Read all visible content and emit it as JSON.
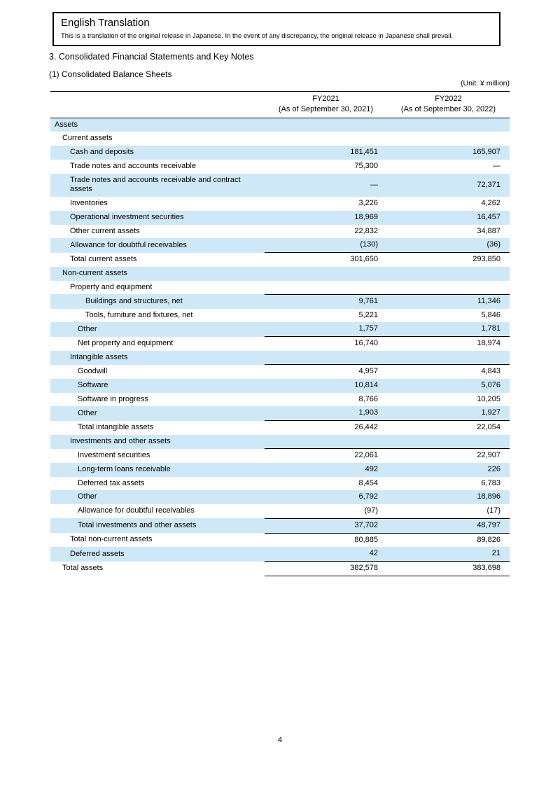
{
  "translation_notice": {
    "title": "English Translation",
    "body": "This is a translation of the original release in Japanese. In the event of any discrepancy, the original release in Japanese shall prevail."
  },
  "headings": {
    "section": "3. Consolidated Financial Statements and Key Notes",
    "subsection": "(1) Consolidated Balance Sheets",
    "unit_note": "(Unit: ¥ million)"
  },
  "balance_sheet": {
    "columns": [
      {
        "line1": "FY2021",
        "line2": "(As of September 30, 2021)"
      },
      {
        "line1": "FY2022",
        "line2": "(As of September 30, 2022)"
      }
    ],
    "rows": [
      {
        "label": "Assets",
        "indent": 0,
        "fy2021": "",
        "fy2022": ""
      },
      {
        "label": "Current assets",
        "indent": 1,
        "fy2021": "",
        "fy2022": ""
      },
      {
        "label": "Cash and deposits",
        "indent": 2,
        "fy2021": "181,451",
        "fy2022": "165,907"
      },
      {
        "label": "Trade notes and accounts receivable",
        "indent": 2,
        "fy2021": "75,300",
        "fy2022": "—"
      },
      {
        "label": "Trade notes and accounts receivable and contract assets",
        "indent": 2,
        "fy2021": "—",
        "fy2022": "72,371"
      },
      {
        "label": "Inventories",
        "indent": 2,
        "fy2021": "3,226",
        "fy2022": "4,262"
      },
      {
        "label": "Operational investment securities",
        "indent": 2,
        "fy2021": "18,969",
        "fy2022": "16,457"
      },
      {
        "label": "Other current assets",
        "indent": 2,
        "fy2021": "22,832",
        "fy2022": "34,887"
      },
      {
        "label": "Allowance for doubtful receivables",
        "indent": 2,
        "fy2021": "(130)",
        "fy2022": "(36)"
      },
      {
        "label": "Total current assets",
        "indent": 2,
        "fy2021": "301,650",
        "fy2022": "293,850",
        "rule_above": true
      },
      {
        "label": "Non-current assets",
        "indent": 1,
        "fy2021": "",
        "fy2022": ""
      },
      {
        "label": "Property and equipment",
        "indent": 2,
        "fy2021": "",
        "fy2022": ""
      },
      {
        "label": "Buildings and structures, net",
        "indent": 4,
        "fy2021": "9,761",
        "fy2022": "11,346",
        "rule_above": true
      },
      {
        "label": "Tools, furniture and fixtures, net",
        "indent": 4,
        "fy2021": "5,221",
        "fy2022": "5,846"
      },
      {
        "label": "Other",
        "indent": 3,
        "fy2021": "1,757",
        "fy2022": "1,781"
      },
      {
        "label": "Net property and equipment",
        "indent": 3,
        "fy2021": "16,740",
        "fy2022": "18,974",
        "rule_above": true
      },
      {
        "label": "Intangible assets",
        "indent": 2,
        "fy2021": "",
        "fy2022": ""
      },
      {
        "label": "Goodwill",
        "indent": 3,
        "fy2021": "4,957",
        "fy2022": "4,843",
        "rule_above": true
      },
      {
        "label": "Software",
        "indent": 3,
        "fy2021": "10,814",
        "fy2022": "5,076"
      },
      {
        "label": "Software in progress",
        "indent": 3,
        "fy2021": "8,766",
        "fy2022": "10,205"
      },
      {
        "label": "Other",
        "indent": 3,
        "fy2021": "1,903",
        "fy2022": "1,927"
      },
      {
        "label": "Total intangible assets",
        "indent": 3,
        "fy2021": "26,442",
        "fy2022": "22,054",
        "rule_above": true
      },
      {
        "label": "Investments and other assets",
        "indent": 2,
        "fy2021": "",
        "fy2022": ""
      },
      {
        "label": "Investment securities",
        "indent": 3,
        "fy2021": "22,061",
        "fy2022": "22,907",
        "rule_above": true
      },
      {
        "label": "Long-term loans receivable",
        "indent": 3,
        "fy2021": "492",
        "fy2022": "226"
      },
      {
        "label": "Deferred tax assets",
        "indent": 3,
        "fy2021": "8,454",
        "fy2022": "6,783"
      },
      {
        "label": "Other",
        "indent": 3,
        "fy2021": "6,792",
        "fy2022": "18,896"
      },
      {
        "label": "Allowance for doubtful receivables",
        "indent": 3,
        "fy2021": "(97)",
        "fy2022": "(17)"
      },
      {
        "label": "Total investments and other assets",
        "indent": 3,
        "fy2021": "37,702",
        "fy2022": "48,797",
        "rule_above": true
      },
      {
        "label": "Total non-current assets",
        "indent": 2,
        "fy2021": "80,885",
        "fy2022": "89,826",
        "rule_above": true
      },
      {
        "label": "Deferred assets",
        "indent": 2,
        "fy2021": "42",
        "fy2022": "21"
      },
      {
        "label": "Total assets",
        "indent": 1,
        "fy2021": "382,578",
        "fy2022": "383,698",
        "rule_above": true,
        "rule_below": true
      }
    ]
  },
  "page": {
    "number": "4"
  }
}
